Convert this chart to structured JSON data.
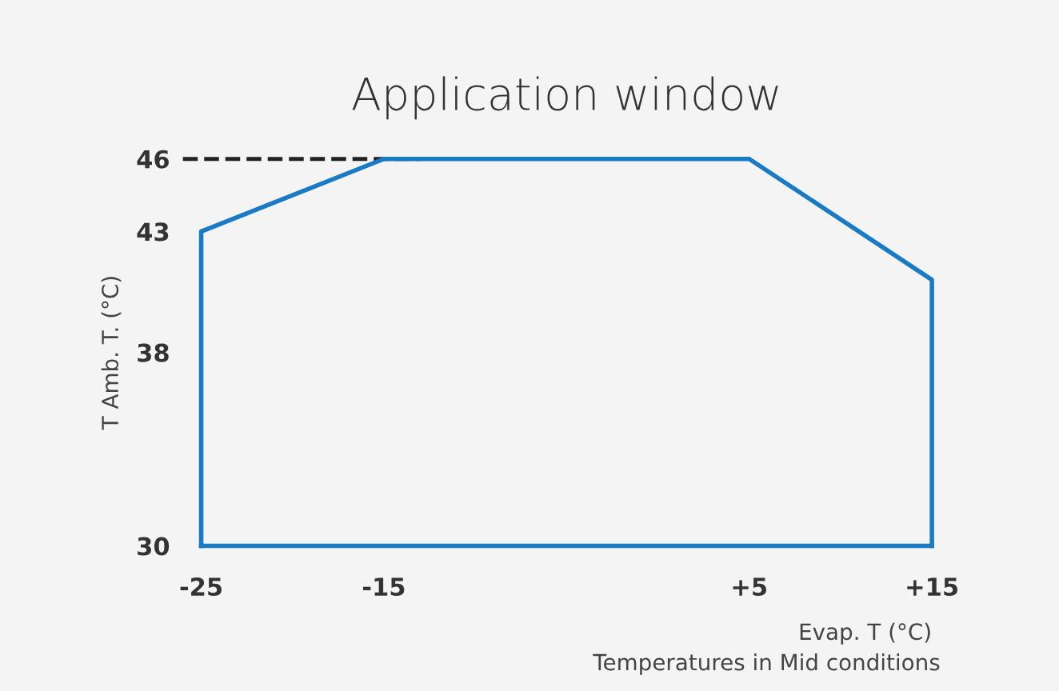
{
  "chart_data": {
    "type": "line",
    "title": "Application window",
    "xlabel": "Evap. T (°C)",
    "ylabel": "T Amb. T. (°C)",
    "annotations": [
      "Temperatures in Mid conditions"
    ],
    "x": [
      -25,
      -25,
      -15,
      5,
      15,
      15
    ],
    "series": [
      {
        "color": "#1a7ac4",
        "values": [
          30,
          43,
          46,
          46,
          41,
          30
        ]
      },
      {
        "color": "#1a7ac4",
        "x": [
          -25,
          15
        ],
        "values": [
          30,
          30
        ]
      }
    ],
    "xlim": [
      -25,
      15
    ],
    "ylim": [
      30,
      46
    ],
    "xticks": [
      -25,
      -15,
      {
        "value": 5,
        "label": "+5"
      },
      {
        "value": 15,
        "label": "+15"
      }
    ],
    "yticks": [
      30,
      38,
      43,
      46
    ],
    "ref_lines": [
      {
        "axis": "y",
        "value": 46,
        "color": "#222222",
        "line_style": "dashed"
      }
    ],
    "grid": false,
    "legend": false,
    "marker": "none",
    "line_style": "solid"
  }
}
